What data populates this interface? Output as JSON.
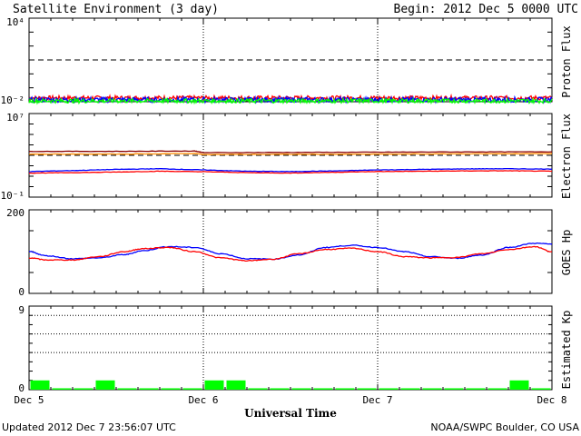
{
  "header": {
    "title": "Satellite Environment (3 day)",
    "begin": "Begin:  2012 Dec 5 0000 UTC"
  },
  "footer": {
    "updated": "Updated 2012 Dec  7 23:56:07 UTC",
    "source": "NOAA/SWPC Boulder, CO USA"
  },
  "x_axis": {
    "title": "Universal Time",
    "ticks": [
      "Dec 5",
      "Dec 6",
      "Dec 7",
      "Dec 8"
    ]
  },
  "colors": {
    "red": "#ff0000",
    "blue": "#0000ff",
    "green": "#00ff00",
    "orange": "#ff8c00",
    "darkred": "#8b0000"
  },
  "chart_data": [
    {
      "type": "line",
      "ylabel": "Proton Flux",
      "scale": "log",
      "ylim": [
        0.01,
        10000
      ],
      "ytick_labels": {
        "top": "10⁴",
        "bottom": "10⁻²"
      },
      "threshold": 10,
      "x_range_days": [
        0,
        3
      ],
      "series": [
        {
          "color": "red",
          "level": 0.019,
          "noise": 0.15
        },
        {
          "color": "blue",
          "level": 0.014,
          "noise": 0.18
        },
        {
          "color": "green",
          "level": 0.0115,
          "noise": 0.15
        }
      ]
    },
    {
      "type": "line",
      "ylabel": "Electron Flux",
      "scale": "log",
      "ylim": [
        0.1,
        10000000
      ],
      "ytick_labels": {
        "top": "10⁷",
        "bottom": "10⁻¹"
      },
      "threshold": 1000,
      "x_range_days": [
        0,
        3
      ],
      "series": [
        {
          "color": "darkred",
          "x": [
            0,
            0.5,
            0.95,
            1.0,
            1.5,
            2.0,
            2.5,
            3.0
          ],
          "y": [
            2400,
            2400,
            2600,
            1800,
            1900,
            2000,
            2100,
            2150
          ]
        },
        {
          "color": "orange",
          "x": [
            0,
            0.5,
            0.95,
            1.0,
            1.5,
            2.0,
            2.5,
            3.0
          ],
          "y": [
            1300,
            1300,
            1500,
            1200,
            1250,
            1300,
            1400,
            1450
          ]
        },
        {
          "color": "blue",
          "x": [
            0,
            0.25,
            0.5,
            0.75,
            1.0,
            1.25,
            1.5,
            1.75,
            2.0,
            2.25,
            2.5,
            2.75,
            3.0
          ],
          "y": [
            28,
            35,
            45,
            52,
            40,
            30,
            28,
            32,
            40,
            45,
            50,
            52,
            48
          ]
        },
        {
          "color": "red",
          "x": [
            0,
            0.25,
            0.5,
            0.75,
            1.0,
            1.25,
            1.5,
            1.75,
            2.0,
            2.25,
            2.5,
            2.75,
            3.0
          ],
          "y": [
            20,
            22,
            25,
            30,
            27,
            22,
            20,
            24,
            28,
            30,
            32,
            33,
            30
          ]
        }
      ]
    },
    {
      "type": "line",
      "ylabel": "GOES Hp",
      "scale": "linear",
      "ylim": [
        0,
        200
      ],
      "ytick_labels": {
        "top": "200",
        "bottom": "0"
      },
      "x_range_days": [
        0,
        3
      ],
      "series": [
        {
          "color": "blue",
          "x": [
            0,
            0.1,
            0.25,
            0.4,
            0.55,
            0.65,
            0.8,
            0.95,
            1.1,
            1.25,
            1.4,
            1.55,
            1.7,
            1.85,
            2.0,
            2.15,
            2.3,
            2.45,
            2.6,
            2.75,
            2.9,
            3.0
          ],
          "y": [
            100,
            90,
            83,
            85,
            93,
            102,
            112,
            110,
            95,
            83,
            82,
            92,
            110,
            115,
            110,
            100,
            88,
            84,
            92,
            110,
            120,
            118
          ]
        },
        {
          "color": "red",
          "x": [
            0,
            0.1,
            0.25,
            0.4,
            0.55,
            0.65,
            0.8,
            0.95,
            1.1,
            1.25,
            1.4,
            1.55,
            1.7,
            1.85,
            2.0,
            2.15,
            2.3,
            2.45,
            2.6,
            2.75,
            2.9,
            3.0
          ],
          "y": [
            85,
            80,
            80,
            88,
            100,
            107,
            110,
            100,
            85,
            78,
            82,
            95,
            105,
            108,
            100,
            88,
            85,
            86,
            95,
            105,
            112,
            100
          ]
        }
      ]
    },
    {
      "type": "bar",
      "ylabel": "Estimated Kp",
      "ylim": [
        0,
        9
      ],
      "ytick_labels": {
        "top": "9",
        "bottom": "0"
      },
      "dotted_levels": [
        4,
        6,
        8
      ],
      "bar_width_hours": 3,
      "color": "green",
      "values": [
        1,
        0,
        0,
        1,
        0,
        0,
        0,
        0,
        1,
        1,
        0,
        0,
        0,
        0,
        0,
        0,
        0,
        0,
        0,
        0,
        0,
        0,
        1,
        0
      ]
    }
  ]
}
